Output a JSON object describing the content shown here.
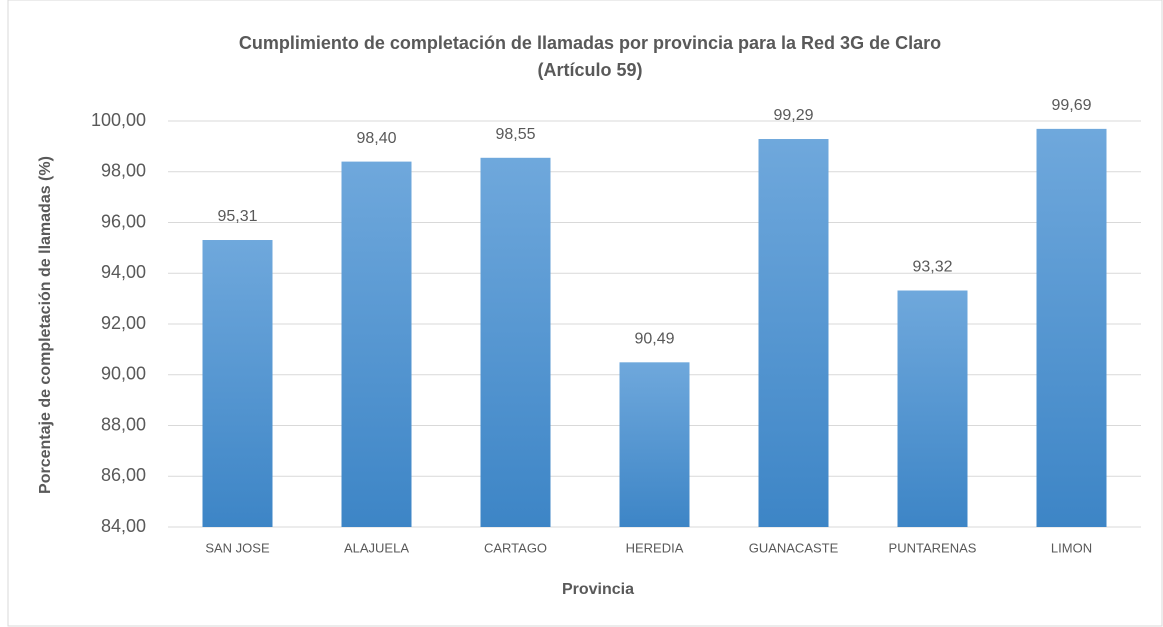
{
  "chart_data": {
    "type": "bar",
    "title": [
      "Cumplimiento de completación de llamadas por provincia para la Red 3G de Claro",
      "(Artículo 59)"
    ],
    "x_label": "Provincia",
    "y_label": "Porcentaje de completación de llamadas  (%)",
    "categories": [
      "SAN JOSE",
      "ALAJUELA",
      "CARTAGO",
      "HEREDIA",
      "GUANACASTE",
      "PUNTARENAS",
      "LIMON"
    ],
    "values": [
      95.31,
      98.4,
      98.55,
      90.49,
      99.29,
      93.32,
      99.69
    ],
    "value_labels": [
      "95,31",
      "98,40",
      "98,55",
      "90,49",
      "99,29",
      "93,32",
      "99,69"
    ],
    "color": "#5b9bd5",
    "ylim": [
      84,
      100
    ],
    "yticks": [
      {
        "value": 84,
        "label": "84,00"
      },
      {
        "value": 86,
        "label": "86,00"
      },
      {
        "value": 88,
        "label": "88,00"
      },
      {
        "value": 90,
        "label": "90,00"
      },
      {
        "value": 92,
        "label": "92,00"
      },
      {
        "value": 94,
        "label": "94,00"
      },
      {
        "value": 96,
        "label": "96,00"
      },
      {
        "value": 98,
        "label": "98,00"
      },
      {
        "value": 100,
        "label": "100,00"
      }
    ],
    "grid": true
  }
}
